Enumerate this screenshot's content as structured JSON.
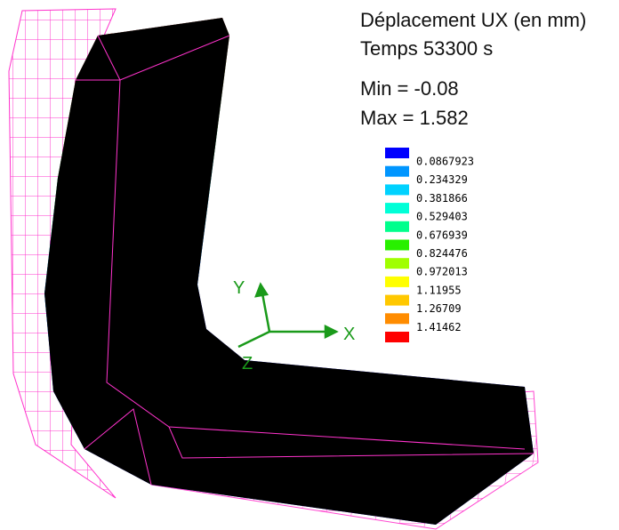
{
  "title": "Déplacement UX (en mm)",
  "time": "Temps 53300 s",
  "min": "Min = -0.08",
  "max": "Max = 1.582",
  "axes": {
    "x": "X",
    "y": "Y",
    "z": "Z"
  },
  "legend": {
    "colors": [
      "#0000ff",
      "#0096ff",
      "#00d2ff",
      "#00ffd7",
      "#00ff8c",
      "#28f000",
      "#a0ff00",
      "#ffff00",
      "#ffc800",
      "#ff8c00",
      "#ff0000"
    ],
    "labels": [
      "0.0867923",
      "0.234329",
      "0.381866",
      "0.529403",
      "0.676939",
      "0.824476",
      "0.972013",
      "1.11955",
      "1.26709",
      "1.41462"
    ]
  }
}
